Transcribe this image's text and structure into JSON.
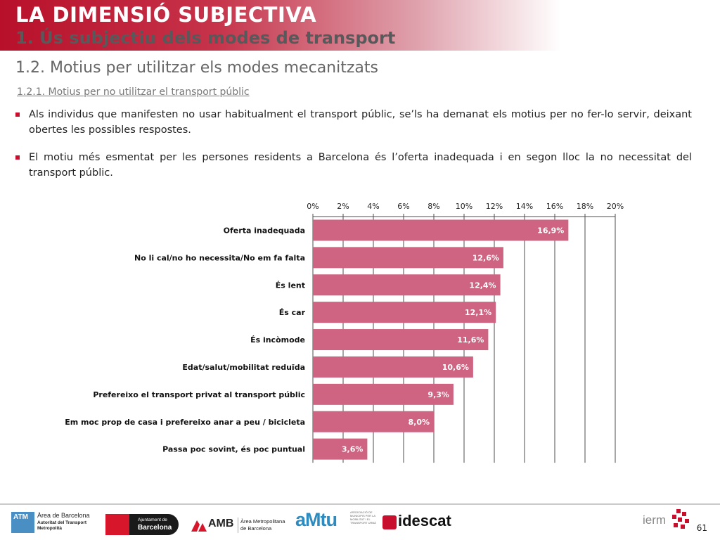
{
  "header": {
    "title": "LA DIMENSIÓ SUBJECTIVA",
    "subtitle": "1. Ús subjectiu dels modes de transport"
  },
  "section": {
    "title": "1.2. Motius per utilitzar els modes mecanitzats",
    "subtitle": "1.2.1. Motius per no utilitzar el transport públic"
  },
  "bullets": [
    "Als individus que manifesten no usar habitualment el transport públic, se’ls ha demanat els motius per no fer-lo servir, deixant obertes les possibles respostes.",
    "El motiu més esmentat per les persones residents a Barcelona és l’oferta inadequada i en segon lloc la no necessitat del transport públic."
  ],
  "chart_data": {
    "type": "bar",
    "orientation": "horizontal",
    "categories": [
      "Oferta inadequada",
      "No li cal/no ho necessita/No em fa falta",
      "És lent",
      "És car",
      "És incòmode",
      "Edat/salut/mobilitat reduïda",
      "Prefereixo el transport privat al transport públic",
      "Em moc prop de casa i prefereixo anar a peu / bicicleta",
      "Passa poc sovint, és poc puntual"
    ],
    "values": [
      16.9,
      12.6,
      12.4,
      12.1,
      11.6,
      10.6,
      9.3,
      8.0,
      3.6
    ],
    "value_labels": [
      "16,9%",
      "12,6%",
      "12,4%",
      "12,1%",
      "11,6%",
      "10,6%",
      "9,3%",
      "8,0%",
      "3,6%"
    ],
    "xlim": [
      0,
      20
    ],
    "xticks": [
      "0%",
      "2%",
      "4%",
      "6%",
      "8%",
      "10%",
      "12%",
      "14%",
      "16%",
      "18%",
      "20%"
    ],
    "axis_position": "top",
    "grid": true,
    "bar_color": "#cf6482"
  },
  "footer": {
    "page_number": "61",
    "logos": [
      {
        "name": "atm-logo",
        "lines": [
          "ATM",
          "Àrea de Barcelona",
          "Autoritat del Transport",
          "Metropolità"
        ]
      },
      {
        "name": "ajuntament-logo",
        "lines": [
          "Ajuntament de",
          "Barcelona"
        ]
      },
      {
        "name": "amb-logo",
        "lines": [
          "AMB",
          "Àrea Metropolitana",
          "de Barcelona"
        ]
      },
      {
        "name": "amtu-logo",
        "lines": [
          "aMtu",
          "ASSOCIACIÓ DE MUNICIPIS PER LA MOBILITAT I EL TRANSPORT URBÀ"
        ]
      },
      {
        "name": "idescat-logo",
        "lines": [
          "idescat"
        ]
      },
      {
        "name": "iermb-logo",
        "lines": [
          "ierm"
        ]
      }
    ]
  }
}
